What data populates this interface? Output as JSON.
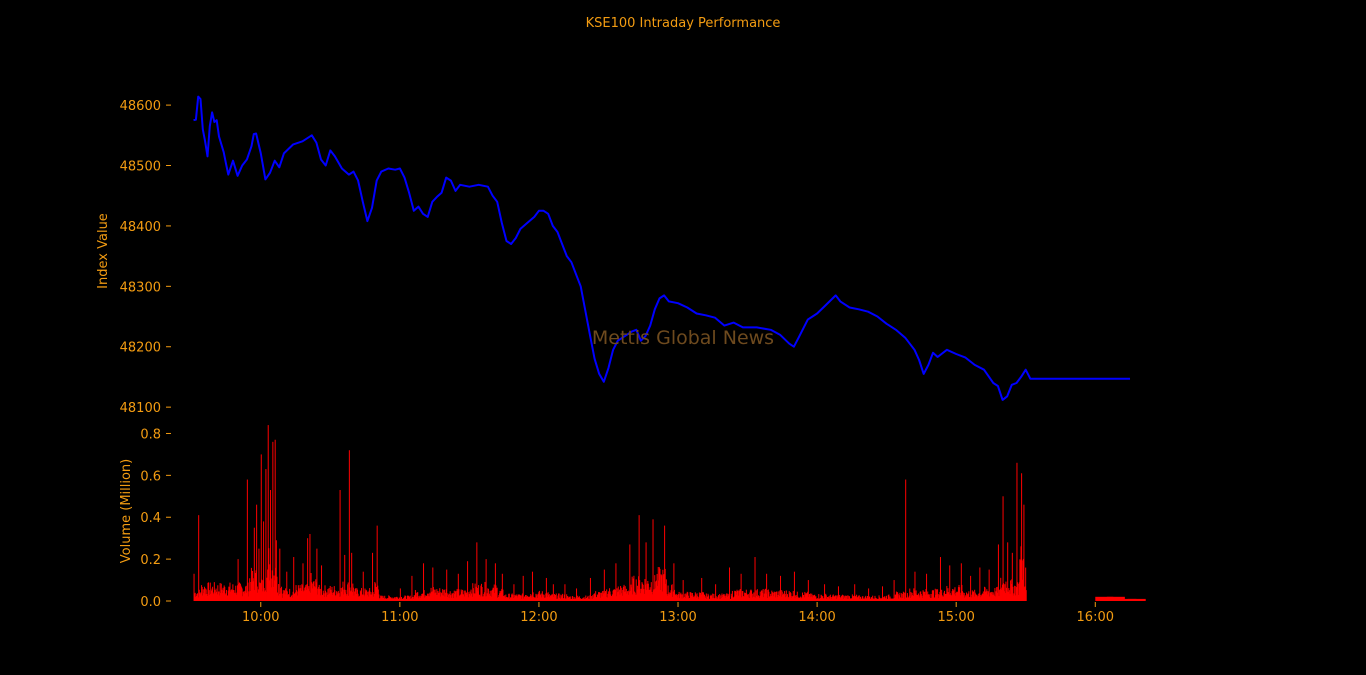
{
  "chart_data": [
    {
      "type": "line",
      "title": "KSE100 Intraday Performance",
      "ylabel": "Index Value",
      "ylim": [
        48087,
        48625
      ],
      "yticks": [
        48100,
        48200,
        48300,
        48400,
        48500,
        48600
      ],
      "series": [
        {
          "color": "#0000ff",
          "points": [
            [
              "09:31",
              48575
            ],
            [
              "09:32",
              48576
            ],
            [
              "09:33",
              48614
            ],
            [
              "09:34",
              48610
            ],
            [
              "09:35",
              48560
            ],
            [
              "09:36",
              48540
            ],
            [
              "09:37",
              48515
            ],
            [
              "09:38",
              48565
            ],
            [
              "09:39",
              48588
            ],
            [
              "09:40",
              48572
            ],
            [
              "09:41",
              48575
            ],
            [
              "09:42",
              48548
            ],
            [
              "09:44",
              48522
            ],
            [
              "09:45",
              48503
            ],
            [
              "09:46",
              48485
            ],
            [
              "09:48",
              48508
            ],
            [
              "09:50",
              48483
            ],
            [
              "09:52",
              48500
            ],
            [
              "09:54",
              48510
            ],
            [
              "09:56",
              48532
            ],
            [
              "09:57",
              48552
            ],
            [
              "09:58",
              48553
            ],
            [
              "10:00",
              48520
            ],
            [
              "10:02",
              48477
            ],
            [
              "10:04",
              48488
            ],
            [
              "10:06",
              48508
            ],
            [
              "10:08",
              48497
            ],
            [
              "10:10",
              48520
            ],
            [
              "10:14",
              48535
            ],
            [
              "10:18",
              48540
            ],
            [
              "10:22",
              48550
            ],
            [
              "10:24",
              48538
            ],
            [
              "10:26",
              48510
            ],
            [
              "10:28",
              48500
            ],
            [
              "10:30",
              48525
            ],
            [
              "10:32",
              48515
            ],
            [
              "10:35",
              48495
            ],
            [
              "10:38",
              48485
            ],
            [
              "10:40",
              48490
            ],
            [
              "10:42",
              48475
            ],
            [
              "10:44",
              48440
            ],
            [
              "10:46",
              48408
            ],
            [
              "10:48",
              48430
            ],
            [
              "10:50",
              48475
            ],
            [
              "10:52",
              48490
            ],
            [
              "10:55",
              48495
            ],
            [
              "10:58",
              48493
            ],
            [
              "11:00",
              48495
            ],
            [
              "11:02",
              48480
            ],
            [
              "11:04",
              48455
            ],
            [
              "11:06",
              48425
            ],
            [
              "11:08",
              48432
            ],
            [
              "11:10",
              48420
            ],
            [
              "11:12",
              48415
            ],
            [
              "11:14",
              48440
            ],
            [
              "11:16",
              48448
            ],
            [
              "11:18",
              48455
            ],
            [
              "11:20",
              48480
            ],
            [
              "11:22",
              48475
            ],
            [
              "11:24",
              48458
            ],
            [
              "11:26",
              48468
            ],
            [
              "11:30",
              48465
            ],
            [
              "11:34",
              48468
            ],
            [
              "11:38",
              48465
            ],
            [
              "11:40",
              48450
            ],
            [
              "11:42",
              48440
            ],
            [
              "11:44",
              48405
            ],
            [
              "11:46",
              48375
            ],
            [
              "11:48",
              48370
            ],
            [
              "11:50",
              48380
            ],
            [
              "11:52",
              48395
            ],
            [
              "11:55",
              48405
            ],
            [
              "11:58",
              48415
            ],
            [
              "12:00",
              48425
            ],
            [
              "12:02",
              48425
            ],
            [
              "12:04",
              48420
            ],
            [
              "12:06",
              48400
            ],
            [
              "12:08",
              48390
            ],
            [
              "12:10",
              48370
            ],
            [
              "12:12",
              48350
            ],
            [
              "12:14",
              48340
            ],
            [
              "12:16",
              48320
            ],
            [
              "12:18",
              48300
            ],
            [
              "12:20",
              48260
            ],
            [
              "12:22",
              48220
            ],
            [
              "12:24",
              48180
            ],
            [
              "12:26",
              48155
            ],
            [
              "12:28",
              48142
            ],
            [
              "12:30",
              48165
            ],
            [
              "12:32",
              48195
            ],
            [
              "12:34",
              48210
            ],
            [
              "12:36",
              48215
            ],
            [
              "12:38",
              48220
            ],
            [
              "12:40",
              48225
            ],
            [
              "12:42",
              48228
            ],
            [
              "12:44",
              48210
            ],
            [
              "12:46",
              48218
            ],
            [
              "12:48",
              48235
            ],
            [
              "12:50",
              48262
            ],
            [
              "12:52",
              48280
            ],
            [
              "12:54",
              48285
            ],
            [
              "12:56",
              48275
            ],
            [
              "13:00",
              48272
            ],
            [
              "13:04",
              48265
            ],
            [
              "13:08",
              48255
            ],
            [
              "13:12",
              48252
            ],
            [
              "13:16",
              48248
            ],
            [
              "13:20",
              48235
            ],
            [
              "13:24",
              48240
            ],
            [
              "13:28",
              48232
            ],
            [
              "13:34",
              48232
            ],
            [
              "13:40",
              48228
            ],
            [
              "13:44",
              48220
            ],
            [
              "13:48",
              48205
            ],
            [
              "13:50",
              48200
            ],
            [
              "13:52",
              48215
            ],
            [
              "13:56",
              48245
            ],
            [
              "14:00",
              48255
            ],
            [
              "14:04",
              48270
            ],
            [
              "14:08",
              48285
            ],
            [
              "14:10",
              48275
            ],
            [
              "14:14",
              48265
            ],
            [
              "14:18",
              48262
            ],
            [
              "14:22",
              48258
            ],
            [
              "14:26",
              48250
            ],
            [
              "14:30",
              48238
            ],
            [
              "14:34",
              48228
            ],
            [
              "14:38",
              48215
            ],
            [
              "14:42",
              48195
            ],
            [
              "14:44",
              48178
            ],
            [
              "14:46",
              48155
            ],
            [
              "14:48",
              48170
            ],
            [
              "14:50",
              48190
            ],
            [
              "14:52",
              48183
            ],
            [
              "14:56",
              48195
            ],
            [
              "15:00",
              48188
            ],
            [
              "15:04",
              48182
            ],
            [
              "15:08",
              48170
            ],
            [
              "15:12",
              48162
            ],
            [
              "15:16",
              48140
            ],
            [
              "15:18",
              48135
            ],
            [
              "15:20",
              48112
            ],
            [
              "15:22",
              48118
            ],
            [
              "15:24",
              48137
            ],
            [
              "15:26",
              48140
            ],
            [
              "15:28",
              48150
            ],
            [
              "15:30",
              48162
            ],
            [
              "15:32",
              48147
            ],
            [
              "16:15",
              48147
            ]
          ]
        }
      ]
    },
    {
      "type": "bar",
      "ylabel": "Volume (Million)",
      "ylim": [
        0,
        0.85
      ],
      "yticks": [
        "0.0",
        "0.2",
        "0.4",
        "0.6",
        "0.8"
      ],
      "xrange": [
        "09:23",
        "16:40"
      ],
      "xticks": [
        "10:00",
        "11:00",
        "12:00",
        "13:00",
        "14:00",
        "15:00",
        "16:00"
      ],
      "color": "#ff0000",
      "session_end": "15:30",
      "peaks": [
        [
          "09:31",
          0.13
        ],
        [
          "09:33",
          0.41
        ],
        [
          "09:50",
          0.2
        ],
        [
          "09:54",
          0.58
        ],
        [
          "09:57",
          0.35
        ],
        [
          "09:58",
          0.46
        ],
        [
          "09:59",
          0.25
        ],
        [
          "10:00",
          0.7
        ],
        [
          "10:01",
          0.38
        ],
        [
          "10:02",
          0.63
        ],
        [
          "10:03",
          0.84
        ],
        [
          "10:04",
          0.53
        ],
        [
          "10:05",
          0.76
        ],
        [
          "10:06",
          0.77
        ],
        [
          "10:08",
          0.25
        ],
        [
          "10:11",
          0.14
        ],
        [
          "10:14",
          0.21
        ],
        [
          "10:18",
          0.18
        ],
        [
          "10:20",
          0.3
        ],
        [
          "10:21",
          0.32
        ],
        [
          "10:24",
          0.25
        ],
        [
          "10:26",
          0.17
        ],
        [
          "10:34",
          0.53
        ],
        [
          "10:36",
          0.22
        ],
        [
          "10:38",
          0.72
        ],
        [
          "10:39",
          0.23
        ],
        [
          "10:44",
          0.14
        ],
        [
          "10:48",
          0.23
        ],
        [
          "10:50",
          0.36
        ],
        [
          "11:00",
          0.06
        ],
        [
          "11:05",
          0.12
        ],
        [
          "11:10",
          0.18
        ],
        [
          "11:14",
          0.16
        ],
        [
          "11:20",
          0.15
        ],
        [
          "11:25",
          0.13
        ],
        [
          "11:29",
          0.19
        ],
        [
          "11:33",
          0.28
        ],
        [
          "11:37",
          0.2
        ],
        [
          "11:41",
          0.18
        ],
        [
          "11:44",
          0.13
        ],
        [
          "11:49",
          0.08
        ],
        [
          "11:53",
          0.12
        ],
        [
          "11:57",
          0.14
        ],
        [
          "12:03",
          0.11
        ],
        [
          "12:06",
          0.08
        ],
        [
          "12:11",
          0.08
        ],
        [
          "12:16",
          0.06
        ],
        [
          "12:22",
          0.11
        ],
        [
          "12:28",
          0.15
        ],
        [
          "12:33",
          0.18
        ],
        [
          "12:39",
          0.27
        ],
        [
          "12:43",
          0.41
        ],
        [
          "12:46",
          0.28
        ],
        [
          "12:49",
          0.39
        ],
        [
          "12:54",
          0.36
        ],
        [
          "12:58",
          0.18
        ],
        [
          "13:02",
          0.1
        ],
        [
          "13:10",
          0.11
        ],
        [
          "13:16",
          0.08
        ],
        [
          "13:22",
          0.16
        ],
        [
          "13:27",
          0.13
        ],
        [
          "13:33",
          0.21
        ],
        [
          "13:38",
          0.13
        ],
        [
          "13:44",
          0.12
        ],
        [
          "13:50",
          0.14
        ],
        [
          "13:56",
          0.1
        ],
        [
          "14:03",
          0.08
        ],
        [
          "14:09",
          0.07
        ],
        [
          "14:16",
          0.08
        ],
        [
          "14:22",
          0.06
        ],
        [
          "14:28",
          0.07
        ],
        [
          "14:33",
          0.1
        ],
        [
          "14:38",
          0.58
        ],
        [
          "14:42",
          0.14
        ],
        [
          "14:47",
          0.13
        ],
        [
          "14:53",
          0.21
        ],
        [
          "14:57",
          0.17
        ],
        [
          "15:02",
          0.18
        ],
        [
          "15:06",
          0.12
        ],
        [
          "15:10",
          0.16
        ],
        [
          "15:14",
          0.15
        ],
        [
          "15:18",
          0.27
        ],
        [
          "15:20",
          0.5
        ],
        [
          "15:22",
          0.28
        ],
        [
          "15:24",
          0.23
        ],
        [
          "15:26",
          0.66
        ],
        [
          "15:28",
          0.61
        ],
        [
          "15:29",
          0.46
        ]
      ],
      "after_hours": [
        [
          "16:00",
          0.02
        ],
        [
          "16:05",
          0.02
        ],
        [
          "16:10",
          0.01
        ],
        [
          "16:14",
          0.01
        ]
      ]
    }
  ],
  "watermark": "Mettis Global News",
  "colors": {
    "background": "#000000",
    "text": "#f39c12",
    "line": "#0000ff",
    "bar": "#ff0000",
    "watermark": "#6e4a1e"
  }
}
